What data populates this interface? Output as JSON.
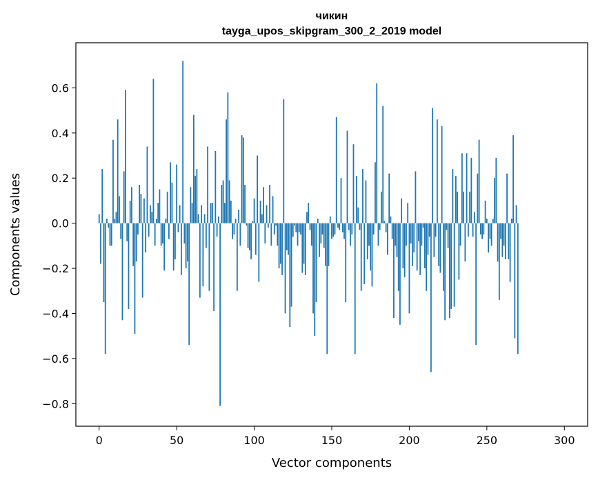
{
  "chart_data": {
    "type": "bar",
    "title": "чикин",
    "subtitle": "tayga_upos_skipgram_300_2_2019 model",
    "xlabel": "Vector components",
    "ylabel": "Components values",
    "xlim": [
      -15,
      315
    ],
    "ylim": [
      -0.9,
      0.8
    ],
    "xticks": [
      0,
      50,
      100,
      150,
      200,
      250,
      300
    ],
    "xtick_labels": [
      "0",
      "50",
      "100",
      "150",
      "200",
      "250",
      "300"
    ],
    "yticks": [
      -0.8,
      -0.6,
      -0.4,
      -0.2,
      0.0,
      0.2,
      0.4,
      0.6
    ],
    "ytick_labels": [
      "−0.8",
      "−0.6",
      "−0.4",
      "−0.2",
      "0.0",
      "0.2",
      "0.4",
      "0.6"
    ],
    "bar_color": "#1f77b4",
    "grid": false,
    "values": [
      0.04,
      -0.18,
      0.24,
      -0.35,
      -0.58,
      0.02,
      -0.02,
      -0.1,
      -0.1,
      0.37,
      0.02,
      0.05,
      0.46,
      0.12,
      -0.07,
      -0.43,
      0.23,
      0.59,
      -0.08,
      -0.38,
      0.1,
      0.16,
      -0.19,
      -0.49,
      -0.17,
      -0.05,
      0.17,
      0.13,
      -0.33,
      0.11,
      -0.13,
      0.34,
      -0.06,
      0.08,
      0.05,
      0.64,
      -0.1,
      0.02,
      0.09,
      0.15,
      -0.1,
      -0.09,
      -0.21,
      0.02,
      0.14,
      -0.07,
      0.27,
      0.18,
      -0.21,
      -0.16,
      0.26,
      -0.04,
      0.08,
      -0.23,
      0.72,
      -0.09,
      -0.2,
      -0.17,
      -0.54,
      0.16,
      0.09,
      0.48,
      0.21,
      0.24,
      0.04,
      -0.33,
      0.08,
      -0.28,
      0.04,
      -0.11,
      0.34,
      -0.3,
      0.09,
      0.09,
      -0.39,
      0.32,
      -0.06,
      0.03,
      -0.81,
      0.17,
      0.19,
      0.09,
      0.46,
      0.58,
      0.19,
      0.1,
      -0.07,
      -0.05,
      0.02,
      -0.3,
      0.06,
      -0.1,
      0.39,
      0.38,
      0.17,
      -0.01,
      -0.11,
      -0.12,
      -0.16,
      0.01,
      0.11,
      -0.14,
      0.3,
      -0.26,
      0.1,
      0.04,
      0.16,
      -0.09,
      0.08,
      -0.02,
      0.17,
      -0.1,
      0.12,
      -0.05,
      -0.01,
      -0.1,
      -0.2,
      -0.18,
      -0.23,
      0.55,
      -0.4,
      -0.12,
      -0.14,
      -0.46,
      -0.37,
      -0.06,
      -0.01,
      -0.04,
      -0.1,
      -0.04,
      -0.05,
      -0.22,
      -0.18,
      -0.23,
      0.05,
      0.09,
      -0.03,
      -0.1,
      -0.4,
      -0.5,
      -0.35,
      0.02,
      -0.15,
      -0.09,
      -0.05,
      -0.11,
      -0.19,
      -0.58,
      -0.19,
      0.03,
      -0.07,
      -0.06,
      -0.05,
      0.47,
      -0.02,
      -0.03,
      0.2,
      -0.04,
      -0.07,
      -0.35,
      0.41,
      -0.03,
      -0.1,
      -0.05,
      0.35,
      -0.58,
      0.21,
      0.07,
      -0.03,
      -0.3,
      0.24,
      -0.27,
      0.19,
      -0.16,
      -0.1,
      -0.21,
      -0.28,
      -0.05,
      0.27,
      0.62,
      -0.1,
      -0.03,
      0.14,
      0.52,
      0.01,
      -0.04,
      -0.14,
      0.22,
      0.03,
      -0.07,
      -0.42,
      -0.1,
      -0.15,
      -0.3,
      -0.45,
      0.11,
      -0.2,
      -0.24,
      -0.1,
      0.09,
      -0.4,
      -0.09,
      -0.19,
      -0.13,
      0.23,
      -0.21,
      -0.08,
      -0.23,
      -0.1,
      -0.02,
      -0.2,
      -0.3,
      -0.14,
      -0.06,
      -0.66,
      0.51,
      -0.15,
      -0.06,
      0.46,
      -0.19,
      -0.22,
      0.43,
      -0.3,
      -0.43,
      -0.03,
      -0.11,
      -0.42,
      -0.38,
      0.24,
      -0.37,
      0.21,
      0.14,
      -0.25,
      -0.1,
      0.31,
      0.14,
      -0.17,
      0.31,
      -0.06,
      0.14,
      0.29,
      -0.06,
      0.05,
      -0.54,
      0.22,
      0.37,
      -0.05,
      -0.07,
      -0.05,
      0.1,
      0.02,
      -0.13,
      -0.07,
      -0.1,
      0.02,
      0.2,
      0.29,
      -0.17,
      -0.34,
      -0.07,
      -0.15,
      -0.1,
      -0.16,
      0.22,
      -0.16,
      -0.26,
      0.02,
      0.39,
      -0.51,
      0.08,
      -0.58
    ]
  }
}
